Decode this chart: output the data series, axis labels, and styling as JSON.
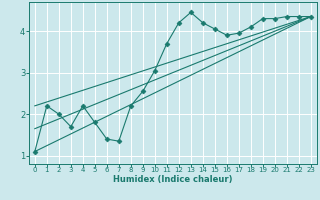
{
  "xlabel": "Humidex (Indice chaleur)",
  "ylabel": "",
  "bg_color": "#cce8ec",
  "grid_color": "#ffffff",
  "line_color": "#1a7a6e",
  "xlim": [
    -0.5,
    23.5
  ],
  "ylim": [
    0.8,
    4.7
  ],
  "xticks": [
    0,
    1,
    2,
    3,
    4,
    5,
    6,
    7,
    8,
    9,
    10,
    11,
    12,
    13,
    14,
    15,
    16,
    17,
    18,
    19,
    20,
    21,
    22,
    23
  ],
  "yticks": [
    1,
    2,
    3,
    4
  ],
  "curve1_x": [
    0,
    1,
    2,
    3,
    4,
    5,
    6,
    7,
    8,
    9,
    10,
    11,
    12,
    13,
    14,
    15,
    16,
    17,
    18,
    19,
    20,
    21,
    22,
    23
  ],
  "curve1_y": [
    1.1,
    2.2,
    2.0,
    1.7,
    2.2,
    1.8,
    1.4,
    1.35,
    2.2,
    2.55,
    3.05,
    3.7,
    4.2,
    4.45,
    4.2,
    4.05,
    3.9,
    3.95,
    4.1,
    4.3,
    4.3,
    4.35,
    4.35,
    4.35
  ],
  "line1_x": [
    0,
    23
  ],
  "line1_y": [
    1.1,
    4.35
  ],
  "line2_x": [
    0,
    23
  ],
  "line2_y": [
    2.2,
    4.35
  ],
  "line3_x": [
    0,
    23
  ],
  "line3_y": [
    1.65,
    4.35
  ]
}
